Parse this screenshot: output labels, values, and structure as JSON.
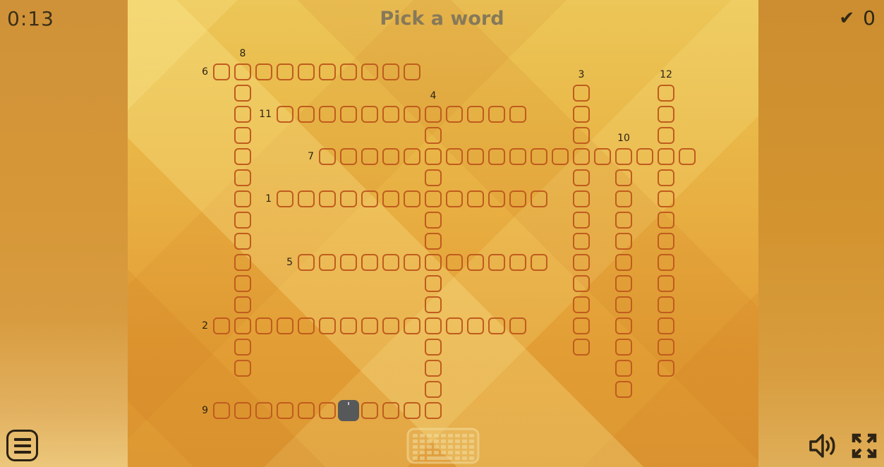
{
  "header": {
    "timer": "0:13",
    "title": "Pick a word",
    "score_value": "0"
  },
  "puzzle": {
    "words": [
      {
        "number": "1",
        "direction": "across",
        "row": 6,
        "col": 3,
        "length": 13,
        "number_position": "left"
      },
      {
        "number": "2",
        "direction": "across",
        "row": 12,
        "col": 0,
        "length": 15,
        "number_position": "left"
      },
      {
        "number": "3",
        "direction": "down",
        "row": 1,
        "col": 17,
        "length": 13,
        "number_position": "above"
      },
      {
        "number": "4",
        "direction": "down",
        "row": 2,
        "col": 10,
        "length": 15,
        "number_position": "above"
      },
      {
        "number": "5",
        "direction": "across",
        "row": 9,
        "col": 4,
        "length": 12,
        "number_position": "left"
      },
      {
        "number": "6",
        "direction": "across",
        "row": 0,
        "col": 0,
        "length": 10,
        "number_position": "left"
      },
      {
        "number": "7",
        "direction": "across",
        "row": 4,
        "col": 5,
        "length": 18,
        "number_position": "left"
      },
      {
        "number": "8",
        "direction": "down",
        "row": 0,
        "col": 1,
        "length": 15,
        "number_position": "above"
      },
      {
        "number": "9",
        "direction": "across",
        "row": 16,
        "col": 0,
        "length": 11,
        "number_position": "left"
      },
      {
        "number": "10",
        "direction": "down",
        "row": 4,
        "col": 19,
        "length": 12,
        "number_position": "above"
      },
      {
        "number": "11",
        "direction": "across",
        "row": 2,
        "col": 3,
        "length": 12,
        "number_position": "left"
      },
      {
        "number": "12",
        "direction": "down",
        "row": 1,
        "col": 21,
        "length": 14,
        "number_position": "above"
      }
    ],
    "prefilled_cells": [
      {
        "row": 16,
        "col": 6,
        "char": "'"
      }
    ]
  },
  "colors": {
    "cell_border": "#c05c1e",
    "prefilled_bg": "#57585a",
    "prefilled_char": "#ffffff",
    "label_text": "#2b2315",
    "title_text": "#86795a",
    "icon_dark": "#2e2414",
    "keyboard_icon": "#f2dfa0"
  },
  "icons": {
    "score": "checkmark-icon",
    "menu": "hamburger-menu-icon",
    "hint": "keyboard-icon",
    "audio": "speaker-icon",
    "fullscreen": "expand-arrows-icon"
  },
  "score_check_glyph": "✔"
}
